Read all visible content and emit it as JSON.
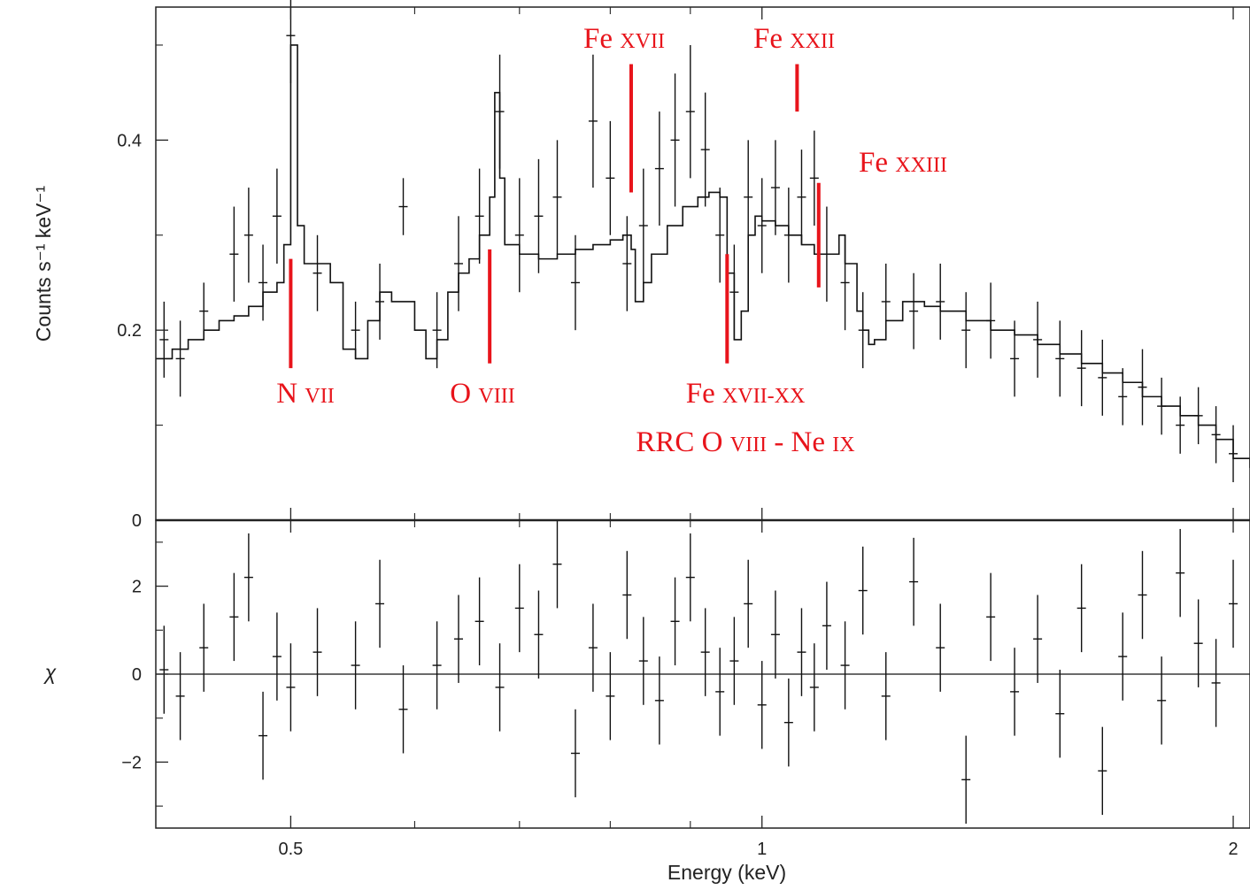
{
  "chart_data": {
    "type": "line",
    "xscale": "log",
    "xlabel": "Energy (keV)",
    "xlim": [
      0.41,
      2.05
    ],
    "xticks": [
      {
        "value": 0.5,
        "label": "0.5"
      },
      {
        "value": 1,
        "label": "1"
      },
      {
        "value": 2,
        "label": "2"
      }
    ],
    "x_minor_ticks": [
      0.6,
      0.7,
      0.8,
      0.9
    ],
    "panels": [
      {
        "name": "spectrum",
        "ylabel": "Counts s⁻¹ keV⁻¹",
        "ylim": [
          0,
          0.54
        ],
        "yticks": [
          {
            "value": 0,
            "label": "0"
          },
          {
            "value": 0.2,
            "label": "0.2"
          },
          {
            "value": 0.4,
            "label": "0.4"
          }
        ],
        "model_step": [
          [
            0.41,
            0.17
          ],
          [
            0.42,
            0.18
          ],
          [
            0.43,
            0.19
          ],
          [
            0.44,
            0.2
          ],
          [
            0.45,
            0.21
          ],
          [
            0.46,
            0.215
          ],
          [
            0.47,
            0.225
          ],
          [
            0.48,
            0.24
          ],
          [
            0.49,
            0.25
          ],
          [
            0.495,
            0.29
          ],
          [
            0.5,
            0.5
          ],
          [
            0.505,
            0.31
          ],
          [
            0.51,
            0.27
          ],
          [
            0.53,
            0.25
          ],
          [
            0.54,
            0.18
          ],
          [
            0.55,
            0.17
          ],
          [
            0.56,
            0.21
          ],
          [
            0.57,
            0.24
          ],
          [
            0.58,
            0.23
          ],
          [
            0.6,
            0.2
          ],
          [
            0.61,
            0.17
          ],
          [
            0.62,
            0.19
          ],
          [
            0.63,
            0.24
          ],
          [
            0.64,
            0.26
          ],
          [
            0.65,
            0.275
          ],
          [
            0.66,
            0.3
          ],
          [
            0.67,
            0.34
          ],
          [
            0.675,
            0.45
          ],
          [
            0.68,
            0.36
          ],
          [
            0.685,
            0.29
          ],
          [
            0.7,
            0.28
          ],
          [
            0.72,
            0.275
          ],
          [
            0.74,
            0.28
          ],
          [
            0.76,
            0.285
          ],
          [
            0.78,
            0.29
          ],
          [
            0.8,
            0.295
          ],
          [
            0.815,
            0.3
          ],
          [
            0.825,
            0.285
          ],
          [
            0.83,
            0.23
          ],
          [
            0.84,
            0.25
          ],
          [
            0.85,
            0.28
          ],
          [
            0.87,
            0.31
          ],
          [
            0.89,
            0.33
          ],
          [
            0.91,
            0.34
          ],
          [
            0.925,
            0.345
          ],
          [
            0.94,
            0.34
          ],
          [
            0.95,
            0.26
          ],
          [
            0.96,
            0.19
          ],
          [
            0.97,
            0.22
          ],
          [
            0.98,
            0.3
          ],
          [
            0.99,
            0.32
          ],
          [
            1.0,
            0.315
          ],
          [
            1.02,
            0.31
          ],
          [
            1.04,
            0.3
          ],
          [
            1.06,
            0.29
          ],
          [
            1.08,
            0.28
          ],
          [
            1.1,
            0.28
          ],
          [
            1.12,
            0.3
          ],
          [
            1.13,
            0.27
          ],
          [
            1.15,
            0.22
          ],
          [
            1.16,
            0.2
          ],
          [
            1.17,
            0.185
          ],
          [
            1.18,
            0.19
          ],
          [
            1.2,
            0.21
          ],
          [
            1.23,
            0.23
          ],
          [
            1.27,
            0.225
          ],
          [
            1.3,
            0.22
          ],
          [
            1.35,
            0.21
          ],
          [
            1.4,
            0.2
          ],
          [
            1.45,
            0.195
          ],
          [
            1.5,
            0.185
          ],
          [
            1.55,
            0.175
          ],
          [
            1.6,
            0.165
          ],
          [
            1.65,
            0.155
          ],
          [
            1.7,
            0.145
          ],
          [
            1.75,
            0.13
          ],
          [
            1.8,
            0.12
          ],
          [
            1.85,
            0.11
          ],
          [
            1.9,
            0.1
          ],
          [
            1.95,
            0.085
          ],
          [
            2.0,
            0.065
          ],
          [
            2.05,
            0.055
          ]
        ],
        "data_points": [
          [
            0.415,
            0.19,
            0.04
          ],
          [
            0.425,
            0.17,
            0.04
          ],
          [
            0.44,
            0.22,
            0.03
          ],
          [
            0.46,
            0.28,
            0.05
          ],
          [
            0.47,
            0.3,
            0.05
          ],
          [
            0.48,
            0.25,
            0.04
          ],
          [
            0.49,
            0.32,
            0.05
          ],
          [
            0.5,
            0.51,
            0.05
          ],
          [
            0.52,
            0.26,
            0.04
          ],
          [
            0.55,
            0.2,
            0.03
          ],
          [
            0.57,
            0.23,
            0.04
          ],
          [
            0.59,
            0.33,
            0.03
          ],
          [
            0.62,
            0.2,
            0.04
          ],
          [
            0.64,
            0.27,
            0.05
          ],
          [
            0.66,
            0.32,
            0.05
          ],
          [
            0.68,
            0.43,
            0.06
          ],
          [
            0.7,
            0.3,
            0.06
          ],
          [
            0.72,
            0.32,
            0.06
          ],
          [
            0.74,
            0.34,
            0.06
          ],
          [
            0.76,
            0.25,
            0.05
          ],
          [
            0.78,
            0.42,
            0.07
          ],
          [
            0.8,
            0.36,
            0.06
          ],
          [
            0.82,
            0.27,
            0.05
          ],
          [
            0.84,
            0.31,
            0.06
          ],
          [
            0.86,
            0.37,
            0.06
          ],
          [
            0.88,
            0.4,
            0.07
          ],
          [
            0.9,
            0.43,
            0.07
          ],
          [
            0.92,
            0.39,
            0.06
          ],
          [
            0.94,
            0.3,
            0.05
          ],
          [
            0.96,
            0.24,
            0.05
          ],
          [
            0.98,
            0.34,
            0.06
          ],
          [
            1.0,
            0.31,
            0.05
          ],
          [
            1.02,
            0.35,
            0.05
          ],
          [
            1.04,
            0.3,
            0.05
          ],
          [
            1.06,
            0.34,
            0.05
          ],
          [
            1.08,
            0.36,
            0.05
          ],
          [
            1.1,
            0.28,
            0.05
          ],
          [
            1.13,
            0.25,
            0.05
          ],
          [
            1.16,
            0.2,
            0.04
          ],
          [
            1.2,
            0.23,
            0.04
          ],
          [
            1.25,
            0.22,
            0.04
          ],
          [
            1.3,
            0.23,
            0.04
          ],
          [
            1.35,
            0.2,
            0.04
          ],
          [
            1.4,
            0.21,
            0.04
          ],
          [
            1.45,
            0.17,
            0.04
          ],
          [
            1.5,
            0.19,
            0.04
          ],
          [
            1.55,
            0.17,
            0.04
          ],
          [
            1.6,
            0.16,
            0.04
          ],
          [
            1.65,
            0.15,
            0.04
          ],
          [
            1.7,
            0.13,
            0.03
          ],
          [
            1.75,
            0.14,
            0.04
          ],
          [
            1.8,
            0.12,
            0.03
          ],
          [
            1.85,
            0.1,
            0.03
          ],
          [
            1.9,
            0.11,
            0.03
          ],
          [
            1.95,
            0.09,
            0.03
          ],
          [
            2.0,
            0.07,
            0.03
          ]
        ],
        "annotations": [
          {
            "text": "N ",
            "sc": "VII",
            "marker_energy": 0.5,
            "marker_y": [
              0.16,
              0.275
            ]
          },
          {
            "text": "O ",
            "sc": "VIII",
            "marker_energy": 0.67,
            "marker_y": [
              0.165,
              0.285
            ]
          },
          {
            "text": "Fe ",
            "sc": "XVII",
            "marker_energy": 0.825,
            "marker_y": [
              0.345,
              0.48
            ]
          },
          {
            "text": "Fe ",
            "sc": "XXII",
            "marker_energy": 1.053,
            "marker_y": [
              0.43,
              0.48
            ]
          },
          {
            "text": "Fe ",
            "sc": "XXIII",
            "marker_energy": 1.087,
            "marker_y": [
              0.245,
              0.355
            ]
          },
          {
            "text": "Fe ",
            "sc": "XVII-XX",
            "marker_energy": 0.95,
            "marker_y": [
              0.165,
              0.28
            ]
          },
          {
            "text": "RRC O ",
            "sc": "VIII",
            "text2": " - Ne ",
            "sc2": "IX",
            "marker_energy": null
          }
        ]
      },
      {
        "name": "residuals",
        "ylabel": "χ",
        "ylim": [
          -3.5,
          3.5
        ],
        "yticks": [
          {
            "value": -2,
            "label": "−2"
          },
          {
            "value": 0,
            "label": "0"
          },
          {
            "value": 2,
            "label": "2"
          }
        ],
        "zero_line": true,
        "data_points": [
          [
            0.415,
            0.1,
            1
          ],
          [
            0.425,
            -0.5,
            1
          ],
          [
            0.44,
            0.6,
            1
          ],
          [
            0.46,
            1.3,
            1
          ],
          [
            0.47,
            2.2,
            1
          ],
          [
            0.48,
            -1.4,
            1
          ],
          [
            0.49,
            0.4,
            1
          ],
          [
            0.5,
            -0.3,
            1
          ],
          [
            0.52,
            0.5,
            1
          ],
          [
            0.55,
            0.2,
            1
          ],
          [
            0.57,
            1.6,
            1
          ],
          [
            0.59,
            -0.8,
            1
          ],
          [
            0.62,
            0.2,
            1
          ],
          [
            0.64,
            0.8,
            1
          ],
          [
            0.66,
            1.2,
            1
          ],
          [
            0.68,
            -0.3,
            1
          ],
          [
            0.7,
            1.5,
            1
          ],
          [
            0.72,
            0.9,
            1
          ],
          [
            0.74,
            2.5,
            1
          ],
          [
            0.76,
            -1.8,
            1
          ],
          [
            0.78,
            0.6,
            1
          ],
          [
            0.8,
            -0.5,
            1
          ],
          [
            0.82,
            1.8,
            1
          ],
          [
            0.84,
            0.3,
            1
          ],
          [
            0.86,
            -0.6,
            1
          ],
          [
            0.88,
            1.2,
            1
          ],
          [
            0.9,
            2.2,
            1
          ],
          [
            0.92,
            0.5,
            1
          ],
          [
            0.94,
            -0.4,
            1
          ],
          [
            0.96,
            0.3,
            1
          ],
          [
            0.98,
            1.6,
            1
          ],
          [
            1.0,
            -0.7,
            1
          ],
          [
            1.02,
            0.9,
            1
          ],
          [
            1.04,
            -1.1,
            1
          ],
          [
            1.06,
            0.5,
            1
          ],
          [
            1.08,
            -0.3,
            1
          ],
          [
            1.1,
            1.1,
            1
          ],
          [
            1.13,
            0.2,
            1
          ],
          [
            1.16,
            1.9,
            1
          ],
          [
            1.2,
            -0.5,
            1
          ],
          [
            1.25,
            2.1,
            1
          ],
          [
            1.3,
            0.6,
            1
          ],
          [
            1.35,
            -2.4,
            1
          ],
          [
            1.4,
            1.3,
            1
          ],
          [
            1.45,
            -0.4,
            1
          ],
          [
            1.5,
            0.8,
            1
          ],
          [
            1.55,
            -0.9,
            1
          ],
          [
            1.6,
            1.5,
            1
          ],
          [
            1.65,
            -2.2,
            1
          ],
          [
            1.7,
            0.4,
            1
          ],
          [
            1.75,
            1.8,
            1
          ],
          [
            1.8,
            -0.6,
            1
          ],
          [
            1.85,
            2.3,
            1
          ],
          [
            1.9,
            0.7,
            1
          ],
          [
            1.95,
            -0.2,
            1
          ],
          [
            2.0,
            1.6,
            1
          ]
        ]
      }
    ],
    "colors": {
      "data": "#111111",
      "annotation": "#e8141b"
    }
  }
}
